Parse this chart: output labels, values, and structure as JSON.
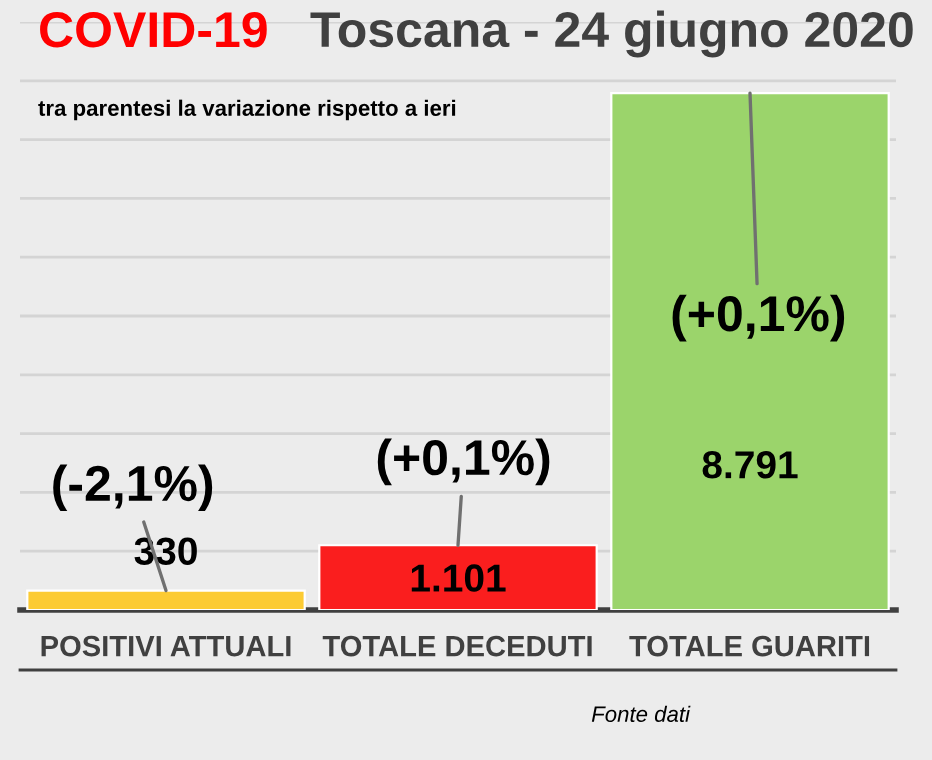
{
  "chart_data": {
    "type": "bar",
    "title": "COVID-19  Toscana - 24 giugno 2020",
    "subtitle": "tra parentesi la variazione rispetto a ieri",
    "categories": [
      "POSITIVI ATTUALI",
      "TOTALE DECEDUTI",
      "TOTALE GUARITI"
    ],
    "values": [
      330,
      1101,
      8791
    ],
    "colors": [
      "#fccb33",
      "#fa1e1e",
      "#9bd46b"
    ],
    "value_labels": [
      "330",
      "1.101",
      "8.791"
    ],
    "ylim": [
      0,
      10000
    ],
    "yticks": [
      {
        "value": 0,
        "label": null
      },
      {
        "value": 1000,
        "label": null
      },
      {
        "value": 2000,
        "label": null
      },
      {
        "value": 3000,
        "label": null
      },
      {
        "value": 4000,
        "label": null
      },
      {
        "value": 5000,
        "label": null
      },
      {
        "value": 6000,
        "label": null
      },
      {
        "value": 7000,
        "label": null
      },
      {
        "value": 8000,
        "label": null
      },
      {
        "value": 9000,
        "label": null
      },
      {
        "value": 10000,
        "label": null
      }
    ],
    "grid": "y",
    "tick_labels": "x",
    "annotations": [
      {
        "text": "(-2,1%)",
        "x": "POSITIVI ATTUALI",
        "y": 330
      },
      {
        "text": "(+0,1%)",
        "x": "TOTALE DECEDUTI",
        "y": 1101
      },
      {
        "text": "(+0,1%)",
        "x": "TOTALE GUARITI",
        "y": 8791
      },
      "Fonte dati"
    ]
  }
}
